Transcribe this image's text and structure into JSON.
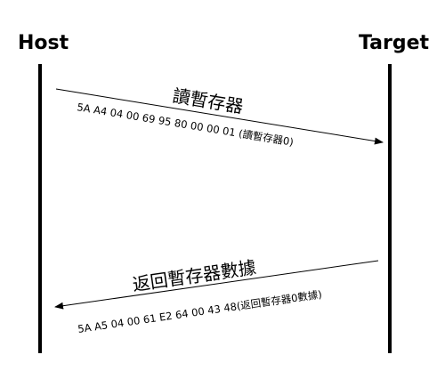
{
  "participants": {
    "host": "Host",
    "target": "Target"
  },
  "messages": [
    {
      "direction": "host-to-target",
      "title": "讀暫存器",
      "bytes": "5A A4 04 00 69 95 80 00 00 01 (讀暫存器0)"
    },
    {
      "direction": "target-to-host",
      "title": "返回暫存器數據",
      "bytes": "5A A5 04 00 61 E2 64 00 43 48(返回暫存器0數據)"
    }
  ]
}
